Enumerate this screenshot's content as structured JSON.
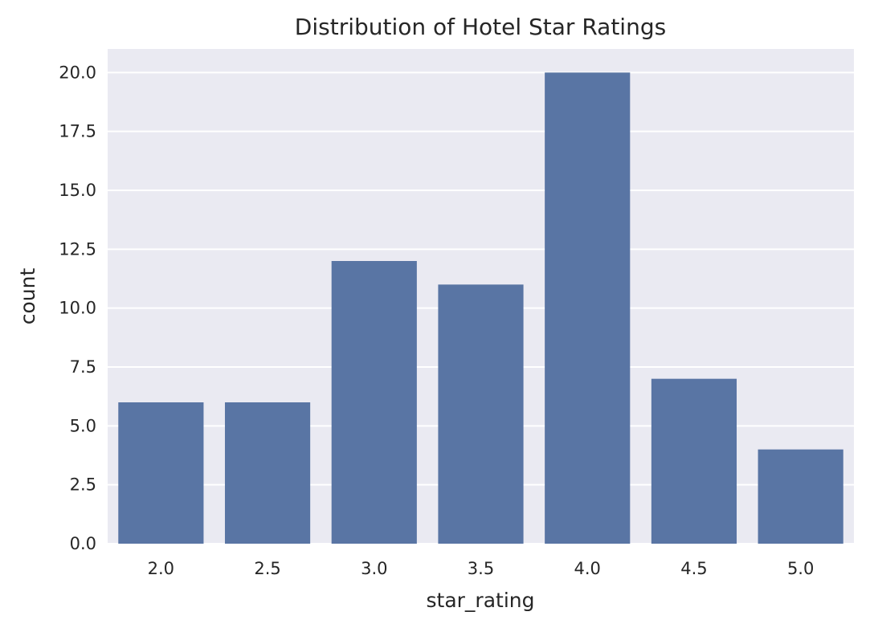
{
  "chart_data": {
    "type": "bar",
    "title": "Distribution of Hotel Star Ratings",
    "xlabel": "star_rating",
    "ylabel": "count",
    "categories": [
      "2.0",
      "2.5",
      "3.0",
      "3.5",
      "4.0",
      "4.5",
      "5.0"
    ],
    "values": [
      6,
      6,
      12,
      11,
      20,
      7,
      4
    ],
    "ylim": [
      0,
      21
    ],
    "yticks": [
      0.0,
      2.5,
      5.0,
      7.5,
      10.0,
      12.5,
      15.0,
      17.5,
      20.0
    ],
    "ytick_labels": [
      "0.0",
      "2.5",
      "5.0",
      "7.5",
      "10.0",
      "12.5",
      "15.0",
      "17.5",
      "20.0"
    ],
    "grid": true,
    "colors": {
      "bar": "#5975a4",
      "plot_background": "#eaeaf2",
      "grid": "#ffffff",
      "text": "#262626"
    }
  }
}
